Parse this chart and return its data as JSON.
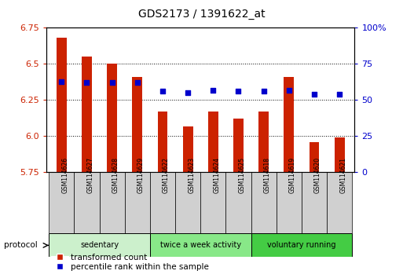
{
  "title": "GDS2173 / 1391622_at",
  "samples": [
    "GSM114626",
    "GSM114627",
    "GSM114628",
    "GSM114629",
    "GSM114622",
    "GSM114623",
    "GSM114624",
    "GSM114625",
    "GSM114618",
    "GSM114619",
    "GSM114620",
    "GSM114621"
  ],
  "red_values": [
    6.68,
    6.55,
    6.5,
    6.41,
    6.17,
    6.07,
    6.17,
    6.12,
    6.17,
    6.41,
    5.96,
    5.99
  ],
  "blue_values_pct": [
    63,
    62,
    62,
    62,
    56,
    55,
    57,
    56,
    56,
    57,
    54,
    54
  ],
  "ylim_left": [
    5.75,
    6.75
  ],
  "ylim_right": [
    0,
    100
  ],
  "yticks_left": [
    5.75,
    6.0,
    6.25,
    6.5,
    6.75
  ],
  "yticks_right_vals": [
    0,
    25,
    50,
    75,
    100
  ],
  "yticks_right_labels": [
    "0",
    "25",
    "50",
    "75",
    "100%"
  ],
  "groups": [
    {
      "label": "sedentary",
      "indices": [
        0,
        1,
        2,
        3
      ],
      "color": "#ccf0cc"
    },
    {
      "label": "twice a week activity",
      "indices": [
        4,
        5,
        6,
        7
      ],
      "color": "#88e888"
    },
    {
      "label": "voluntary running",
      "indices": [
        8,
        9,
        10,
        11
      ],
      "color": "#44cc44"
    }
  ],
  "bar_color": "#cc2200",
  "dot_color": "#0000cc",
  "base": 5.75,
  "legend_red": "transformed count",
  "legend_blue": "percentile rank within the sample",
  "protocol_label": "protocol",
  "background_plot": "#ffffff",
  "axis_label_color_left": "#cc2200",
  "axis_label_color_right": "#0000cc",
  "sample_box_color": "#d0d0d0",
  "bar_width": 0.4
}
